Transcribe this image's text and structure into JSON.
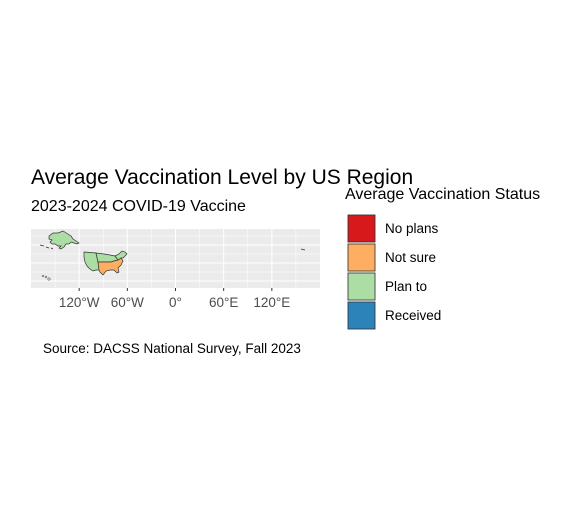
{
  "title": "Average Vaccination Level by US Region",
  "subtitle": "2023-2024 COVID-19 Vaccine",
  "caption": "Source: DACSS National Survey, Fall 2023",
  "legend": {
    "title": "Average Vaccination Status",
    "placement": "right",
    "items": [
      {
        "label": "No plans",
        "color": "#d7191c"
      },
      {
        "label": "Not sure",
        "color": "#fdae61"
      },
      {
        "label": "Plan to",
        "color": "#abdda4"
      },
      {
        "label": "Received",
        "color": "#2b83ba"
      }
    ]
  },
  "map": {
    "panel_background": "#ebebeb",
    "grid_color": "#ffffff",
    "x_range": [
      -180,
      180
    ],
    "y_range": [
      15,
      72
    ],
    "x_ticks": [
      {
        "value": -120,
        "label": "120°W"
      },
      {
        "value": -60,
        "label": "60°W"
      },
      {
        "value": 0,
        "label": "0°"
      },
      {
        "value": 60,
        "label": "60°E"
      },
      {
        "value": 120,
        "label": "120°E"
      }
    ],
    "regions": [
      {
        "name": "Alaska",
        "status": "Plan to",
        "color": "#abdda4"
      },
      {
        "name": "Hawaii",
        "status": "Plan to",
        "color": "#abdda4"
      },
      {
        "name": "West",
        "status": "Plan to",
        "color": "#abdda4"
      },
      {
        "name": "Midwest",
        "status": "Plan to",
        "color": "#abdda4"
      },
      {
        "name": "South",
        "status": "Not sure",
        "color": "#fdae61"
      },
      {
        "name": "Northeast",
        "status": "Plan to",
        "color": "#abdda4"
      }
    ]
  }
}
